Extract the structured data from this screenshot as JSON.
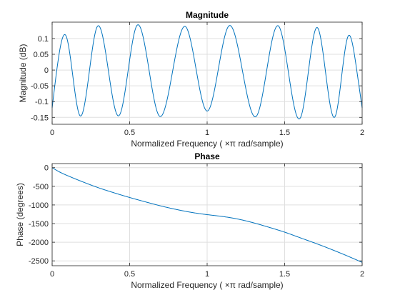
{
  "colors": {
    "line": "#0072BD",
    "grid": "#DFDFDF",
    "axes": "#262626"
  },
  "chart_data": [
    {
      "type": "line",
      "title": "Magnitude",
      "xlabel": "Normalized  Frequency    ( ×π  rad/sample)",
      "ylabel": "Magnitude (dB)",
      "xlim": [
        0,
        2
      ],
      "ylim": [
        -0.172,
        0.152
      ],
      "xticks": [
        0,
        0.5,
        1,
        1.5,
        2
      ],
      "xtick_labels": [
        "0",
        "0.5",
        "1",
        "1.5",
        "2"
      ],
      "yticks": [
        0.1,
        0.05,
        0,
        -0.05,
        -0.1,
        -0.15
      ],
      "ytick_labels": [
        "0.1",
        "0.05",
        "0",
        "-0.05",
        "-0.1",
        "-0.15"
      ],
      "grid": true,
      "series": [
        {
          "x": [
            0,
            0.03,
            0.09,
            0.18,
            0.29,
            0.43,
            0.545,
            0.69,
            0.86,
            1.0,
            1.14,
            1.32,
            1.46,
            1.605,
            1.71,
            1.825,
            1.91,
            1.965,
            2.0
          ],
          "y": [
            -0.12,
            0.0,
            0.108,
            -0.145,
            0.137,
            -0.145,
            0.14,
            -0.145,
            0.138,
            -0.13,
            0.14,
            -0.145,
            0.14,
            -0.148,
            0.135,
            -0.148,
            0.108,
            0.0,
            -0.12
          ]
        }
      ]
    },
    {
      "type": "line",
      "title": "Phase",
      "xlabel": "Normalized  Frequency    ( ×π  rad/sample)",
      "ylabel": "Phase (degrees)",
      "xlim": [
        0,
        2
      ],
      "ylim": [
        -2630,
        110
      ],
      "xticks": [
        0,
        0.5,
        1,
        1.5,
        2
      ],
      "xtick_labels": [
        "0",
        "0.5",
        "1",
        "1.5",
        "2"
      ],
      "yticks": [
        0,
        -500,
        -1000,
        -1500,
        -2000,
        -2500
      ],
      "ytick_labels": [
        "0",
        "-500",
        "-1000",
        "-1500",
        "-2000",
        "-2500"
      ],
      "grid": true,
      "series": [
        {
          "x": [
            0,
            0.05,
            0.1,
            0.2,
            0.3,
            0.4,
            0.5,
            0.6,
            0.7,
            0.8,
            0.9,
            1.0,
            1.1,
            1.2,
            1.3,
            1.4,
            1.5,
            1.6,
            1.7,
            1.8,
            1.9,
            2.0
          ],
          "y": [
            0,
            -120,
            -215,
            -385,
            -540,
            -675,
            -800,
            -915,
            -1025,
            -1120,
            -1200,
            -1260,
            -1310,
            -1380,
            -1480,
            -1600,
            -1730,
            -1880,
            -2030,
            -2190,
            -2360,
            -2540
          ]
        }
      ]
    }
  ]
}
